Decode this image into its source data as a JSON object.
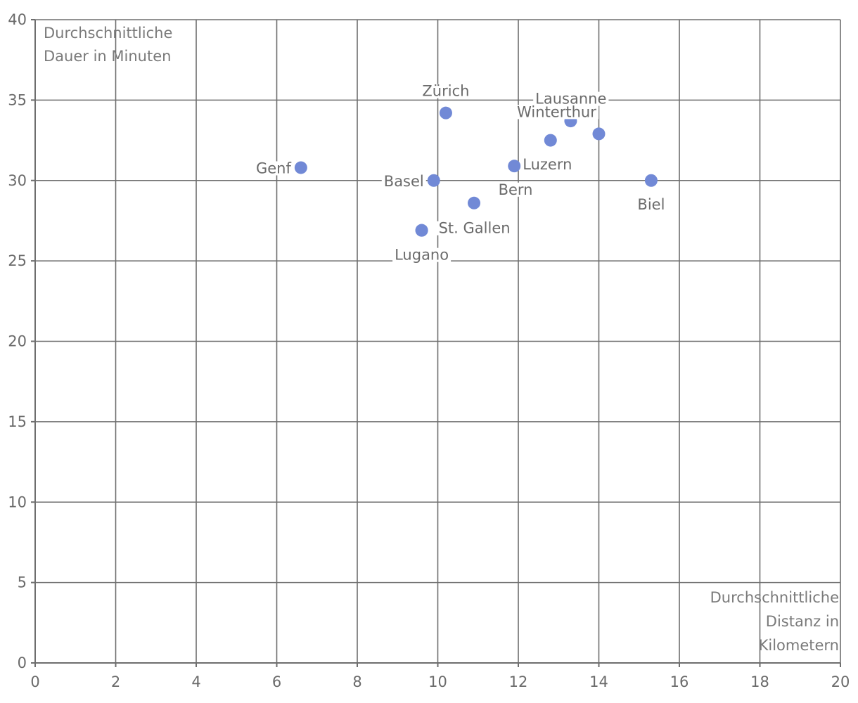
{
  "chart_data": {
    "type": "scatter",
    "xlabel": "Durchschnittliche Distanz in Kilometern",
    "ylabel": "Durchschnittliche Dauer in Minuten",
    "xlabel_lines": [
      "Durchschnittliche",
      "Distanz in",
      "Kilometern"
    ],
    "ylabel_lines": [
      "Durchschnittliche",
      "Dauer in Minuten"
    ],
    "xlim": [
      0,
      20
    ],
    "ylim": [
      0,
      40
    ],
    "xticks": [
      0,
      2,
      4,
      6,
      8,
      10,
      12,
      14,
      16,
      18,
      20
    ],
    "yticks": [
      0,
      5,
      10,
      15,
      20,
      25,
      30,
      35,
      40
    ],
    "grid": true,
    "point_color": "#7189d6",
    "points": [
      {
        "label": "Zürich",
        "x": 10.2,
        "y": 34.2,
        "label_pos": "above"
      },
      {
        "label": "Lausanne",
        "x": 12.8,
        "y": 32.5,
        "label_pos": "above"
      },
      {
        "label": "Winterthur",
        "x": 14.0,
        "y": 32.9,
        "label_pos": "above"
      },
      {
        "label": "Genf",
        "x": 6.6,
        "y": 30.8,
        "label_pos": "left"
      },
      {
        "label": "Basel",
        "x": 9.9,
        "y": 30.0,
        "label_pos": "left"
      },
      {
        "label": "Luzern",
        "x": 11.9,
        "y": 30.9,
        "label_pos": "right"
      },
      {
        "label": "Bern",
        "x": 10.9,
        "y": 28.6,
        "label_pos": "below-right"
      },
      {
        "label": "Biel",
        "x": 15.3,
        "y": 30.0,
        "label_pos": "below"
      },
      {
        "label": "St. Gallen",
        "x": 9.6,
        "y": 26.9,
        "label_pos": "right"
      },
      {
        "label": "Lugano",
        "x": 9.6,
        "y": 26.9,
        "label_pos": "below"
      },
      {
        "label": "",
        "x": 13.3,
        "y": 33.7,
        "label_pos": "none"
      }
    ]
  }
}
